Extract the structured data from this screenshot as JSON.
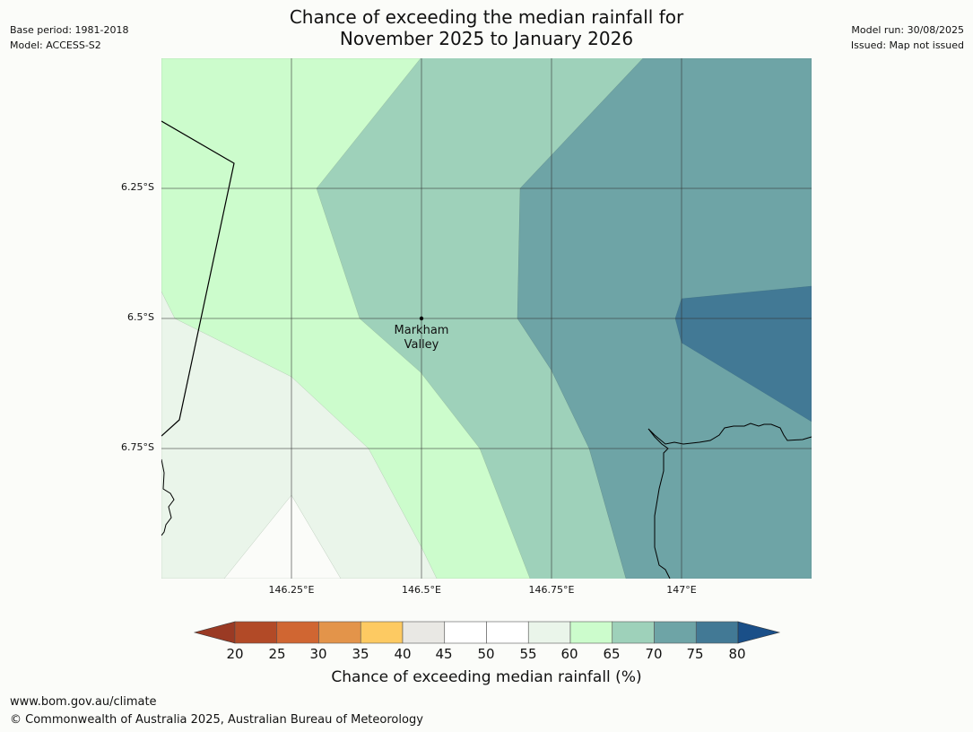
{
  "header": {
    "title_line1": "Chance of exceeding the median rainfall for",
    "title_line2": "November 2025 to January 2026",
    "base_period": "Base period: 1981-2018",
    "model": "Model: ACCESS-S2",
    "model_run": "Model run: 30/08/2025",
    "issued": "Issued: Map not issued"
  },
  "map": {
    "lat_labels": [
      "6.25°S",
      "6.5°S",
      "6.75°S"
    ],
    "lon_labels": [
      "146.25°E",
      "146.5°E",
      "146.75°E",
      "147°E"
    ],
    "place": {
      "name_line1": "Markham",
      "name_line2": "Valley"
    }
  },
  "legend": {
    "label": "Chance of exceeding median rainfall (%)",
    "ticks": [
      "20",
      "25",
      "30",
      "35",
      "40",
      "45",
      "50",
      "55",
      "60",
      "65",
      "70",
      "75",
      "80"
    ],
    "under_color": "#9a3a24",
    "over_color": "#1a4f88",
    "bin_colors": [
      "#b24a27",
      "#d06632",
      "#e3944a",
      "#fdca62",
      "#e9e8e4",
      "#ffffff",
      "#ffffff",
      "#eaf5ea",
      "#ccfccc",
      "#9ed1ba",
      "#6ea4a6",
      "#427995"
    ]
  },
  "footer": {
    "url": "www.bom.gov.au/climate",
    "copyright": "© Commonwealth of Australia 2025, Australian Bureau of Meteorology"
  }
}
